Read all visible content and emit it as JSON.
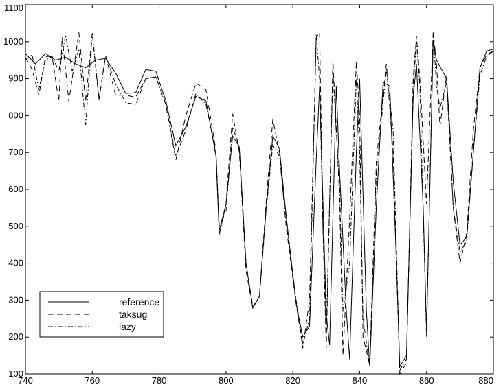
{
  "chart_data": {
    "type": "line",
    "title": "",
    "xlabel": "",
    "ylabel": "",
    "xlim": [
      740,
      880
    ],
    "ylim": [
      100,
      1100
    ],
    "grid": false,
    "legend_position": "bottom-left",
    "x_ticks": [
      740,
      760,
      780,
      800,
      820,
      840,
      860,
      880
    ],
    "y_ticks": [
      100,
      200,
      300,
      400,
      500,
      600,
      700,
      800,
      900,
      1000,
      1100
    ],
    "series": [
      {
        "name": "reference",
        "style": "solid",
        "points": [
          [
            740,
            968
          ],
          [
            743,
            940
          ],
          [
            746,
            968
          ],
          [
            749,
            950
          ],
          [
            752,
            958
          ],
          [
            755,
            940
          ],
          [
            758,
            930
          ],
          [
            761,
            950
          ],
          [
            764,
            955
          ],
          [
            767,
            915
          ],
          [
            770,
            860
          ],
          [
            773,
            862
          ],
          [
            776,
            925
          ],
          [
            779,
            920
          ],
          [
            782,
            840
          ],
          [
            785,
            718
          ],
          [
            788,
            770
          ],
          [
            791,
            852
          ],
          [
            794,
            840
          ],
          [
            797,
            690
          ],
          [
            798,
            478
          ],
          [
            800,
            560
          ],
          [
            802,
            745
          ],
          [
            804,
            715
          ],
          [
            806,
            400
          ],
          [
            808,
            278
          ],
          [
            810,
            310
          ],
          [
            812,
            545
          ],
          [
            814,
            745
          ],
          [
            816,
            710
          ],
          [
            818,
            530
          ],
          [
            821,
            290
          ],
          [
            823,
            200
          ],
          [
            825,
            230
          ],
          [
            827,
            680
          ],
          [
            828,
            880
          ],
          [
            830,
            260
          ],
          [
            831,
            178
          ],
          [
            833,
            880
          ],
          [
            834,
            650
          ],
          [
            836,
            270
          ],
          [
            837,
            140
          ],
          [
            839,
            700
          ],
          [
            840,
            900
          ],
          [
            842,
            270
          ],
          [
            843,
            120
          ],
          [
            845,
            560
          ],
          [
            847,
            890
          ],
          [
            849,
            880
          ],
          [
            851,
            400
          ],
          [
            852,
            120
          ],
          [
            854,
            150
          ],
          [
            856,
            850
          ],
          [
            857,
            940
          ],
          [
            859,
            550
          ],
          [
            860,
            220
          ],
          [
            862,
            1000
          ],
          [
            863,
            950
          ],
          [
            866,
            900
          ],
          [
            868,
            620
          ],
          [
            870,
            450
          ],
          [
            872,
            470
          ],
          [
            874,
            700
          ],
          [
            876,
            930
          ],
          [
            878,
            975
          ],
          [
            880,
            980
          ]
        ]
      },
      {
        "name": "taksug",
        "style": "dashed",
        "points": [
          [
            740,
            958
          ],
          [
            742,
            925
          ],
          [
            744,
            855
          ],
          [
            746,
            960
          ],
          [
            748,
            960
          ],
          [
            750,
            838
          ],
          [
            751,
            1012
          ],
          [
            753,
            838
          ],
          [
            756,
            1025
          ],
          [
            758,
            838
          ],
          [
            760,
            1022
          ],
          [
            762,
            842
          ],
          [
            764,
            962
          ],
          [
            767,
            855
          ],
          [
            770,
            855
          ],
          [
            773,
            850
          ],
          [
            776,
            900
          ],
          [
            779,
            905
          ],
          [
            782,
            830
          ],
          [
            785,
            680
          ],
          [
            788,
            800
          ],
          [
            791,
            888
          ],
          [
            794,
            870
          ],
          [
            797,
            705
          ],
          [
            798,
            490
          ],
          [
            800,
            560
          ],
          [
            802,
            805
          ],
          [
            804,
            700
          ],
          [
            806,
            380
          ],
          [
            808,
            280
          ],
          [
            810,
            310
          ],
          [
            812,
            560
          ],
          [
            814,
            790
          ],
          [
            816,
            700
          ],
          [
            818,
            500
          ],
          [
            821,
            290
          ],
          [
            823,
            170
          ],
          [
            825,
            300
          ],
          [
            827,
            1010
          ],
          [
            828,
            1025
          ],
          [
            829,
            500
          ],
          [
            830,
            170
          ],
          [
            832,
            950
          ],
          [
            834,
            580
          ],
          [
            835,
            150
          ],
          [
            837,
            520
          ],
          [
            839,
            945
          ],
          [
            840,
            800
          ],
          [
            841,
            200
          ],
          [
            843,
            125
          ],
          [
            845,
            680
          ],
          [
            848,
            940
          ],
          [
            850,
            700
          ],
          [
            852,
            100
          ],
          [
            854,
            130
          ],
          [
            856,
            900
          ],
          [
            857,
            1015
          ],
          [
            858,
            900
          ],
          [
            860,
            560
          ],
          [
            862,
            1025
          ],
          [
            863,
            940
          ],
          [
            864,
            770
          ],
          [
            866,
            910
          ],
          [
            868,
            550
          ],
          [
            870,
            400
          ],
          [
            872,
            480
          ],
          [
            874,
            760
          ],
          [
            876,
            930
          ],
          [
            878,
            965
          ],
          [
            880,
            975
          ]
        ]
      },
      {
        "name": "lazy",
        "style": "dashdot",
        "points": [
          [
            740,
            950
          ],
          [
            742,
            965
          ],
          [
            744,
            870
          ],
          [
            746,
            950
          ],
          [
            748,
            960
          ],
          [
            750,
            920
          ],
          [
            752,
            1018
          ],
          [
            754,
            920
          ],
          [
            756,
            980
          ],
          [
            758,
            775
          ],
          [
            760,
            1025
          ],
          [
            762,
            845
          ],
          [
            764,
            962
          ],
          [
            767,
            885
          ],
          [
            770,
            835
          ],
          [
            773,
            830
          ],
          [
            776,
            900
          ],
          [
            779,
            905
          ],
          [
            782,
            830
          ],
          [
            785,
            690
          ],
          [
            788,
            760
          ],
          [
            791,
            860
          ],
          [
            794,
            830
          ],
          [
            797,
            700
          ],
          [
            798,
            500
          ],
          [
            800,
            540
          ],
          [
            802,
            770
          ],
          [
            804,
            710
          ],
          [
            806,
            400
          ],
          [
            808,
            285
          ],
          [
            810,
            305
          ],
          [
            812,
            540
          ],
          [
            814,
            720
          ],
          [
            816,
            690
          ],
          [
            818,
            510
          ],
          [
            821,
            300
          ],
          [
            823,
            180
          ],
          [
            825,
            250
          ],
          [
            827,
            1020
          ],
          [
            828,
            900
          ],
          [
            829,
            500
          ],
          [
            830,
            210
          ],
          [
            832,
            920
          ],
          [
            834,
            610
          ],
          [
            835,
            270
          ],
          [
            837,
            400
          ],
          [
            839,
            900
          ],
          [
            840,
            700
          ],
          [
            841,
            250
          ],
          [
            843,
            120
          ],
          [
            845,
            650
          ],
          [
            848,
            925
          ],
          [
            850,
            760
          ],
          [
            852,
            110
          ],
          [
            854,
            140
          ],
          [
            856,
            880
          ],
          [
            857,
            1000
          ],
          [
            858,
            880
          ],
          [
            860,
            200
          ],
          [
            862,
            1020
          ],
          [
            863,
            880
          ],
          [
            864,
            820
          ],
          [
            866,
            890
          ],
          [
            868,
            550
          ],
          [
            870,
            430
          ],
          [
            872,
            460
          ],
          [
            874,
            700
          ],
          [
            876,
            910
          ],
          [
            878,
            960
          ],
          [
            880,
            975
          ]
        ]
      }
    ]
  }
}
